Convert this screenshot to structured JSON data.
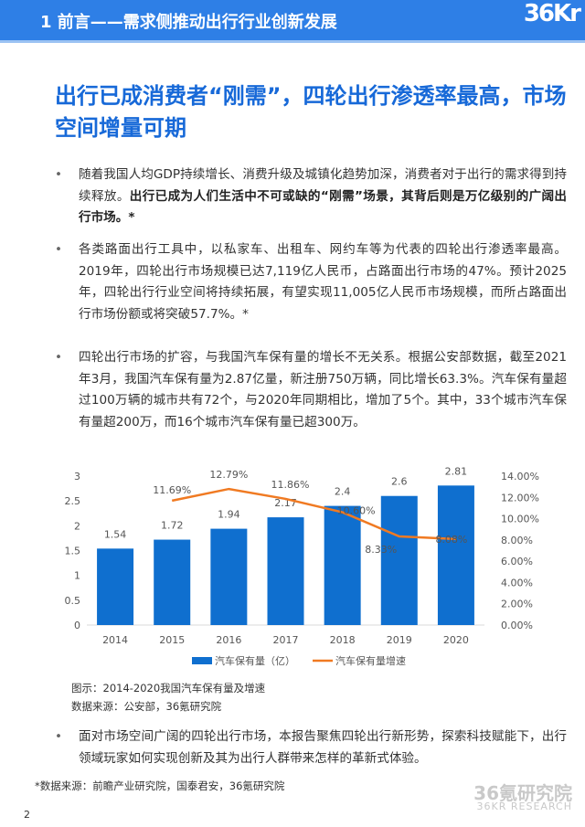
{
  "header": {
    "title": "1 前言——需求侧推动出行行业创新发展",
    "logo": "36Kr"
  },
  "title": "出行已成消费者“刚需”，四轮出行渗透率最高，市场空间增量可期",
  "bullets": [
    {
      "text": "随着我国人均GDP持续增长、消费升级及城镇化趋势加深，消费者对于出行的需求得到持续释放。",
      "bold": "出行已成为人们生活中不可或缺的“刚需”场景，其背后则是万亿级别的广阔出行市场。",
      "tail": "*"
    },
    {
      "text": "各类路面出行工具中，以私家车、出租车、网约车等为代表的四轮出行渗透率最高。2019年，四轮出行市场规模已达7,119亿人民币，占路面出行市场的47%。预计2025年，四轮出行行业空间将持续拓展，有望实现11,005亿人民币市场规模，而所占路面出行市场份额或将突破57.7%。*"
    },
    {
      "text": "四轮出行市场的扩容，与我国汽车保有量的增长不无关系。根据公安部数据，截至2021年3月，我国汽车保有量为2.87亿量，新注册750万辆，同比增长63.3%。汽车保有量超过100万辆的城市共有72个，与2020年同期相比，增加了5个。其中，33个城市汽车保有量超200万，而16个城市汽车保有量已超300万。"
    },
    {
      "text": "面对市场空间广阔的四轮出行市场，本报告聚焦四轮出行新形势，探索科技赋能下，出行领域玩家如何实现创新及其为出行人群带来怎样的革新式体验。"
    }
  ],
  "chart_data": {
    "type": "bar+line",
    "categories": [
      "2014",
      "2015",
      "2016",
      "2017",
      "2018",
      "2019",
      "2020"
    ],
    "series": [
      {
        "name": "汽车保有量（亿）",
        "type": "bar",
        "axis": "left",
        "color": "#0f6fcf",
        "values": [
          1.54,
          1.72,
          1.94,
          2.17,
          2.4,
          2.6,
          2.81
        ],
        "labels": [
          "1.54",
          "1.72",
          "1.94",
          "2.17",
          "2.4",
          "2.6",
          "2.81"
        ]
      },
      {
        "name": "汽车保有量增速",
        "type": "line",
        "axis": "right",
        "color": "#f07a22",
        "values": [
          null,
          11.69,
          12.79,
          11.86,
          10.6,
          8.33,
          8.08
        ],
        "labels": [
          "",
          "11.69%",
          "12.79%",
          "11.86%",
          "10.60%",
          "8.33%",
          "8.08%"
        ]
      }
    ],
    "ylim": [
      0,
      3
    ],
    "yticks": [
      "0",
      "0.5",
      "1",
      "1.5",
      "2",
      "2.5",
      "3"
    ],
    "y2lim": [
      0,
      14
    ],
    "y2ticks": [
      "0.00%",
      "2.00%",
      "4.00%",
      "6.00%",
      "8.00%",
      "10.00%",
      "12.00%",
      "14.00%"
    ],
    "legend": "bottom",
    "grid": false
  },
  "caption": {
    "figure": "图示：2014-2020我国汽车保有量及增速",
    "source": "数据来源：公安部，36氪研究院"
  },
  "footnote": "*数据来源：前瞻产业研究院，国泰君安，36氪研究院",
  "page": "2",
  "watermark": {
    "cn": "36氪研究院",
    "en": "36KR RESEARCH"
  }
}
